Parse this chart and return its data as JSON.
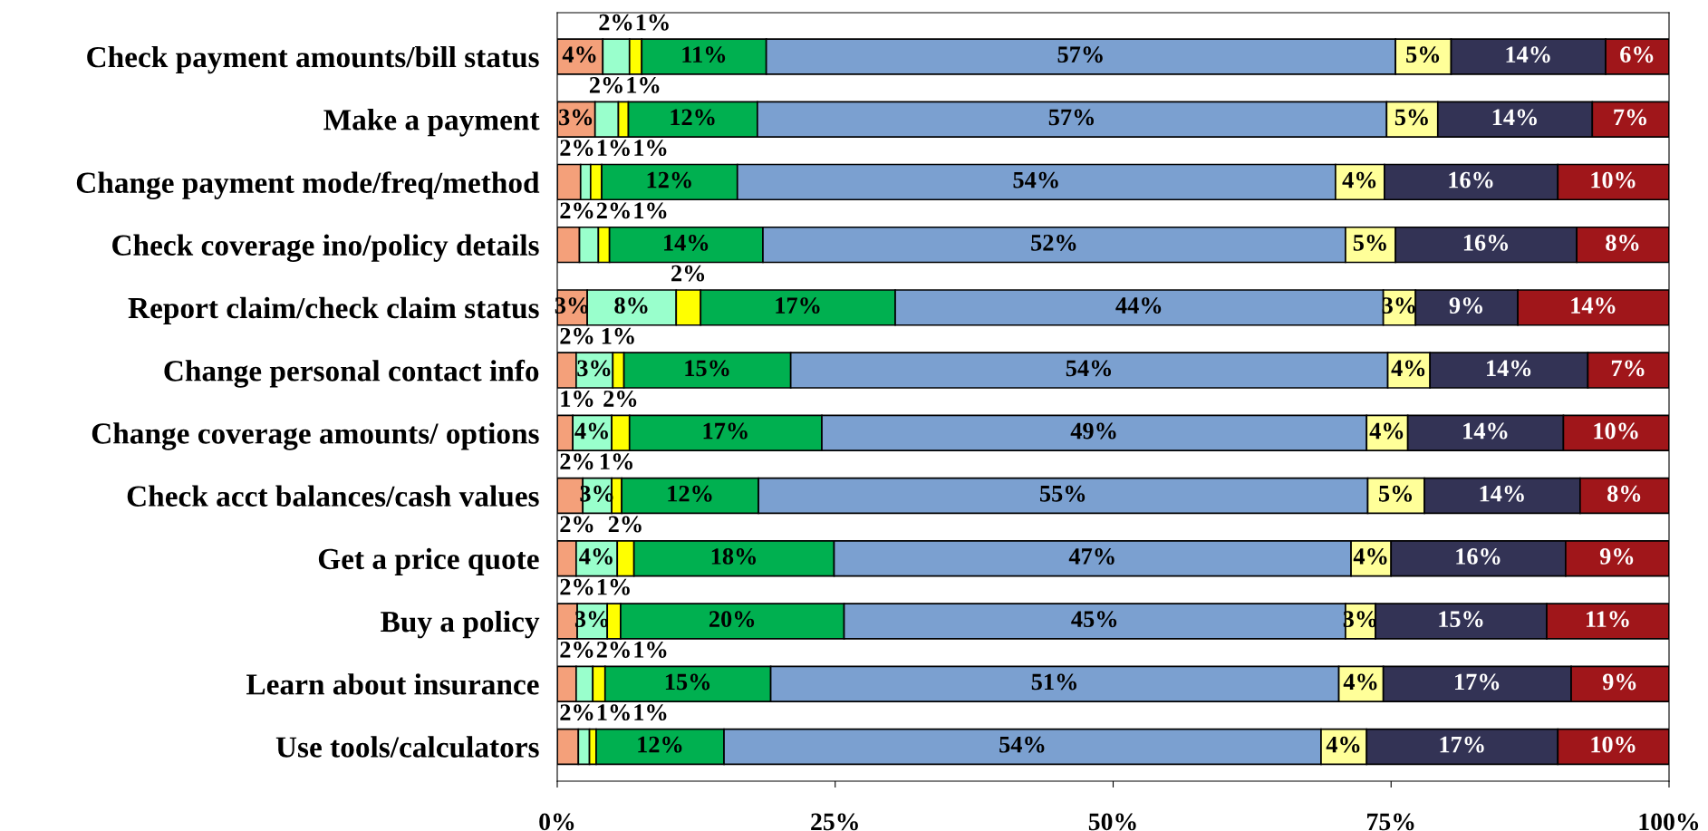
{
  "chart_data": {
    "type": "bar",
    "orientation": "horizontal",
    "stacked": true,
    "legend": false,
    "grid": false,
    "categories": [
      "Check payment amounts/bill status",
      "Make a payment",
      "Change payment mode/freq/method",
      "Check coverage ino/policy details",
      "Report claim/check claim status",
      "Change personal contact info",
      "Change coverage amounts/ options",
      "Check acct balances/cash values",
      "Get a price quote",
      "Buy a policy",
      "Learn about insurance",
      "Use tools/calculators"
    ],
    "xlim": [
      0,
      100
    ],
    "xticks": [
      {
        "value": 0,
        "label": "0%"
      },
      {
        "value": 25,
        "label": "25%"
      },
      {
        "value": 50,
        "label": "50%"
      },
      {
        "value": 75,
        "label": "75%"
      },
      {
        "value": 100,
        "label": "100%"
      }
    ],
    "series": [
      {
        "color": "#f4a07a",
        "values": [
          4.1,
          3.4,
          2.1,
          2.0,
          2.7,
          1.7,
          1.4,
          2.3,
          1.7,
          1.8,
          1.7,
          1.9
        ],
        "value_labels": [
          "4%",
          "3%",
          "2%",
          "2%",
          "3%",
          "2%",
          "1%",
          "2%",
          "2%",
          "2%",
          "2%",
          "2%"
        ]
      },
      {
        "color": "#99ffcc",
        "values": [
          2.4,
          2.1,
          0.9,
          1.7,
          8.0,
          3.3,
          3.5,
          2.6,
          3.7,
          2.7,
          1.5,
          1.0
        ],
        "value_labels": [
          "2%",
          "2%",
          "1%",
          "2%",
          "8%",
          "3%",
          "4%",
          "3%",
          "4%",
          "3%",
          "2%",
          "1%"
        ]
      },
      {
        "color": "#ffff00",
        "values": [
          1.1,
          0.9,
          1.0,
          1.0,
          2.2,
          1.0,
          1.6,
          0.9,
          1.5,
          1.2,
          1.1,
          0.6
        ],
        "value_labels": [
          "1%",
          "1%",
          "1%",
          "1%",
          "2%",
          "1%",
          "2%",
          "1%",
          "2%",
          "1%",
          "1%",
          "1%"
        ]
      },
      {
        "color": "#00b050",
        "values": [
          11.2,
          11.6,
          12.2,
          13.8,
          17.5,
          15.0,
          17.3,
          12.3,
          18.0,
          20.1,
          14.9,
          11.5
        ],
        "value_labels": [
          "11%",
          "12%",
          "12%",
          "14%",
          "17%",
          "15%",
          "17%",
          "12%",
          "18%",
          "20%",
          "15%",
          "12%"
        ]
      },
      {
        "color": "#7ba0d0",
        "values": [
          56.6,
          56.6,
          53.8,
          52.4,
          43.9,
          53.7,
          49.0,
          54.8,
          46.5,
          45.1,
          51.1,
          53.7
        ],
        "value_labels": [
          "57%",
          "57%",
          "54%",
          "52%",
          "44%",
          "54%",
          "49%",
          "55%",
          "47%",
          "45%",
          "51%",
          "54%"
        ]
      },
      {
        "color": "#ffff99",
        "values": [
          5.0,
          4.6,
          4.4,
          4.5,
          2.9,
          3.8,
          3.7,
          5.1,
          3.6,
          2.7,
          4.0,
          4.1
        ],
        "value_labels": [
          "5%",
          "5%",
          "4%",
          "5%",
          "3%",
          "4%",
          "4%",
          "5%",
          "4%",
          "3%",
          "4%",
          "4%"
        ]
      },
      {
        "color": "#333355",
        "values": [
          13.9,
          13.9,
          15.6,
          16.3,
          9.2,
          14.2,
          14.0,
          14.0,
          15.7,
          15.4,
          16.9,
          17.2
        ],
        "value_labels": [
          "14%",
          "14%",
          "16%",
          "16%",
          "9%",
          "14%",
          "14%",
          "14%",
          "16%",
          "15%",
          "17%",
          "17%"
        ]
      },
      {
        "color": "#a0161a",
        "values": [
          5.7,
          6.9,
          10.0,
          8.3,
          13.6,
          7.3,
          9.5,
          8.0,
          9.3,
          11.0,
          8.8,
          10.0
        ],
        "value_labels": [
          "6%",
          "7%",
          "10%",
          "8%",
          "14%",
          "7%",
          "10%",
          "8%",
          "9%",
          "11%",
          "9%",
          "10%"
        ]
      }
    ]
  }
}
